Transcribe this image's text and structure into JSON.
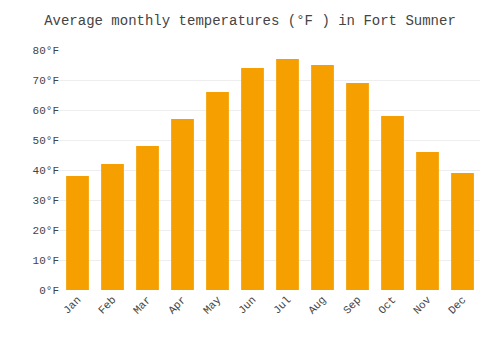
{
  "chart_data": {
    "type": "bar",
    "title": "Average monthly temperatures (°F ) in Fort Sumner",
    "categories": [
      "Jan",
      "Feb",
      "Mar",
      "Apr",
      "May",
      "Jun",
      "Jul",
      "Aug",
      "Sep",
      "Oct",
      "Nov",
      "Dec"
    ],
    "values": [
      38,
      42,
      48,
      57,
      66,
      74,
      77,
      75,
      69,
      58,
      46,
      39
    ],
    "color": "#F5A000",
    "ylim": [
      0,
      80
    ],
    "yticks": [
      {
        "value": 0,
        "label": "0°F"
      },
      {
        "value": 10,
        "label": "10°F"
      },
      {
        "value": 20,
        "label": "20°F"
      },
      {
        "value": 30,
        "label": "30°F"
      },
      {
        "value": 40,
        "label": "40°F"
      },
      {
        "value": 50,
        "label": "50°F"
      },
      {
        "value": 60,
        "label": "60°F"
      },
      {
        "value": 70,
        "label": "70°F"
      },
      {
        "value": 80,
        "label": "80°F"
      }
    ],
    "grid": true
  }
}
